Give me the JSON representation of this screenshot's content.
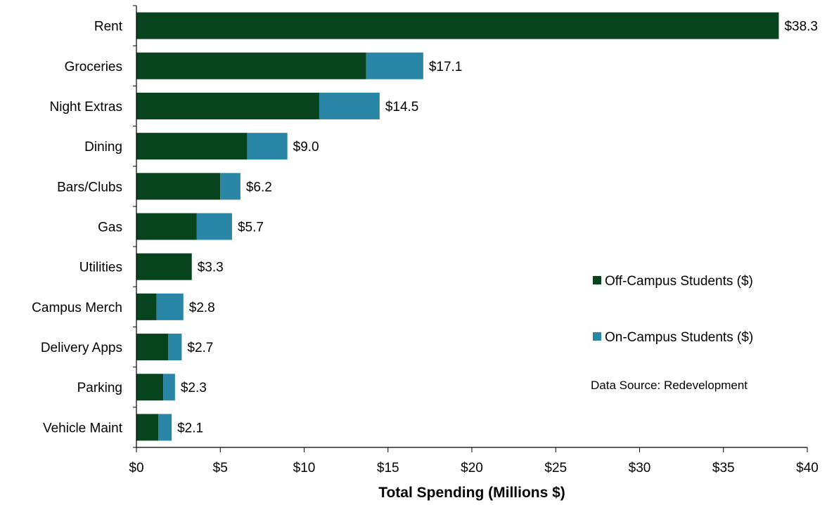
{
  "chart_data": {
    "type": "bar",
    "orientation": "horizontal",
    "stacked": true,
    "categories": [
      "Rent",
      "Groceries",
      "Night Extras",
      "Dining",
      "Bars/Clubs",
      "Gas",
      "Utilities",
      "Campus Merch",
      "Delivery Apps",
      "Parking",
      "Vehicle Maint"
    ],
    "series": [
      {
        "name": "Off-Campus Students ($)",
        "color": "#07431c",
        "values": [
          38.3,
          13.7,
          10.9,
          6.6,
          5.0,
          3.6,
          3.3,
          1.2,
          1.9,
          1.6,
          1.3
        ]
      },
      {
        "name": "On-Campus Students ($)",
        "color": "#2a86a6",
        "values": [
          0.0,
          3.4,
          3.6,
          2.4,
          1.2,
          2.1,
          0.0,
          1.6,
          0.8,
          0.7,
          0.8
        ]
      }
    ],
    "totals": [
      38.3,
      17.1,
      14.5,
      9.0,
      6.2,
      5.7,
      3.3,
      2.8,
      2.7,
      2.3,
      2.1
    ],
    "data_labels": [
      "$38.3",
      "$17.1",
      "$14.5",
      "$9.0",
      "$6.2",
      "$5.7",
      "$3.3",
      "$2.8",
      "$2.7",
      "$2.3",
      "$2.1"
    ],
    "xlim": [
      0,
      40
    ],
    "xticks": [
      0,
      5,
      10,
      15,
      20,
      25,
      30,
      35,
      40
    ],
    "xtick_labels": [
      "$0",
      "$5",
      "$10",
      "$15",
      "$20",
      "$25",
      "$30",
      "$35",
      "$40"
    ],
    "xlabel": "Total Spending (Millions $)",
    "ylabel": "",
    "title": "",
    "grid": false,
    "legend_position": "right",
    "annotation": "Data Source: Redevelopment"
  }
}
